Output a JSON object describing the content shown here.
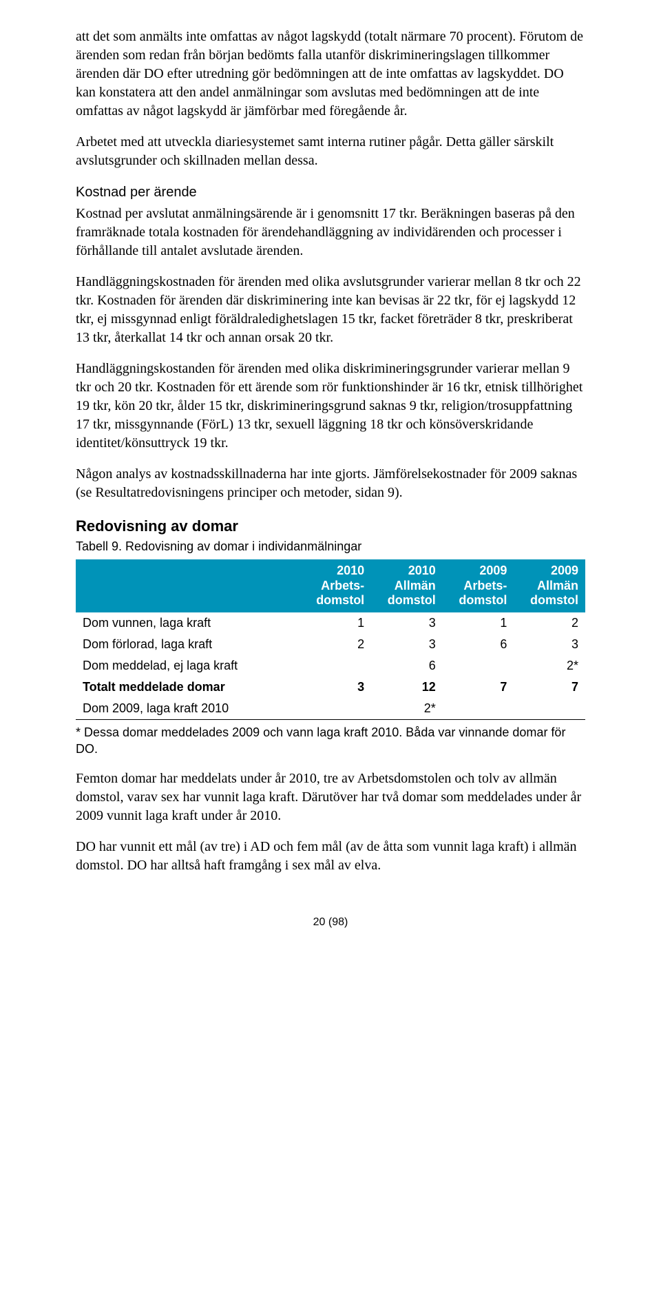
{
  "para1": "att det som anmälts inte omfattas av något lagskydd (totalt närmare 70 procent). Förutom de ärenden som redan från början bedömts falla utanför diskrimineringslagen tillkommer ärenden där DO efter utredning gör bedömningen att de inte omfattas av lagskyddet. DO kan konstatera att den andel anmälningar som avslutas med bedömningen att de inte omfattas av något lagskydd är jämförbar med föregående år.",
  "para2": "Arbetet med att utveckla diariesystemet samt interna rutiner pågår. Detta gäller särskilt avslutsgrunder och skillnaden mellan dessa.",
  "kostnad_heading": "Kostnad per ärende",
  "para3": "Kostnad per avslutat anmälningsärende är i genomsnitt 17 tkr. Beräkningen baseras på den framräknade totala kostnaden för ärendehandläggning av individärenden och processer i förhållande till antalet avslutade ärenden.",
  "para4": "Handläggningskostnaden för ärenden med olika avslutsgrunder varierar mellan 8 tkr och 22 tkr. Kostnaden för ärenden där diskriminering inte kan bevisas är 22 tkr, för ej lagskydd 12 tkr, ej missgynnad enligt föräldraledighetslagen 15 tkr, facket företräder 8 tkr, preskriberat 13 tkr, återkallat 14 tkr och annan orsak 20 tkr.",
  "para5": "Handläggningskostanden för ärenden med olika diskrimineringsgrunder varierar mellan 9 tkr och 20 tkr. Kostnaden för ett ärende som rör funktionshinder är 16 tkr, etnisk tillhörighet 19 tkr, kön 20 tkr, ålder 15 tkr, diskrimineringsgrund saknas 9 tkr, religion/trosuppfattning 17 tkr, missgynnande (FörL) 13 tkr, sexuell läggning 18 tkr och könsöverskridande identitet/könsuttryck 19 tkr.",
  "para6": "Någon analys av kostnadsskillnaderna har inte gjorts. Jämförelsekostnader för 2009 saknas (se Resultatredovisningens principer och metoder, sidan 9).",
  "section_heading": "Redovisning av domar",
  "table_caption": "Tabell 9. Redovisning av domar i individanmälningar",
  "table": {
    "header_bg": "#0093b8",
    "header_fg": "#ffffff",
    "columns": [
      "",
      "2010\nArbets-\ndomstol",
      "2010\nAllmän\ndomstol",
      "2009\nArbets-\ndomstol",
      "2009\nAllmän\ndomstol"
    ],
    "rows": [
      {
        "label": "Dom vunnen, laga kraft",
        "c1": "1",
        "c2": "3",
        "c3": "1",
        "c4": "2",
        "bold": false
      },
      {
        "label": "Dom förlorad, laga kraft",
        "c1": "2",
        "c2": "3",
        "c3": "6",
        "c4": "3",
        "bold": false
      },
      {
        "label": "Dom meddelad, ej laga kraft",
        "c1": "",
        "c2": "6",
        "c3": "",
        "c4": "2*",
        "bold": false
      },
      {
        "label": "Totalt meddelade domar",
        "c1": "3",
        "c2": "12",
        "c3": "7",
        "c4": "7",
        "bold": true
      },
      {
        "label": "Dom 2009, laga kraft 2010",
        "c1": "",
        "c2": "2*",
        "c3": "",
        "c4": "",
        "bold": false
      }
    ]
  },
  "footnote": "* Dessa domar meddelades 2009 och vann laga kraft 2010. Båda var vinnande domar för DO.",
  "para7": "Femton domar har meddelats under år 2010, tre av Arbetsdomstolen och tolv av allmän domstol, varav sex har vunnit laga kraft. Därutöver har två domar som meddelades under år 2009 vunnit laga kraft under år 2010.",
  "para8": "DO har vunnit ett mål (av tre) i AD och fem mål (av de åtta som vunnit laga kraft) i allmän domstol. DO har alltså haft framgång i sex mål av elva.",
  "page_number": "20 (98)"
}
